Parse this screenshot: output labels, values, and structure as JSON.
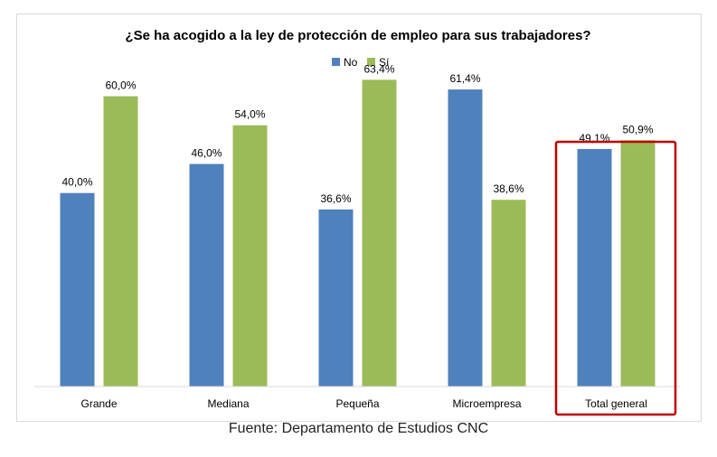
{
  "chart_data": {
    "type": "bar",
    "title": "¿Se ha acogido a la ley de protección de empleo para sus trabajadores?",
    "categories": [
      "Grande",
      "Mediana",
      "Pequeña",
      "Microempresa",
      "Total general"
    ],
    "series": [
      {
        "name": "No",
        "values": [
          40.0,
          46.0,
          36.6,
          61.4,
          49.1
        ],
        "labels": [
          "40,0%",
          "46,0%",
          "36,6%",
          "61,4%",
          "49,1%"
        ],
        "color": "#4f81bd"
      },
      {
        "name": "Sí",
        "values": [
          60.0,
          54.0,
          63.4,
          38.6,
          50.9
        ],
        "labels": [
          "60,0%",
          "54,0%",
          "63,4%",
          "38,6%",
          "50,9%"
        ],
        "color": "#9bbb59"
      }
    ],
    "ylim": [
      0,
      70
    ],
    "grid": false,
    "legend_position": "top-center",
    "highlighted_category": "Total general",
    "highlight_color": "#c00000"
  },
  "source": "Fuente: Departamento de Estudios CNC"
}
